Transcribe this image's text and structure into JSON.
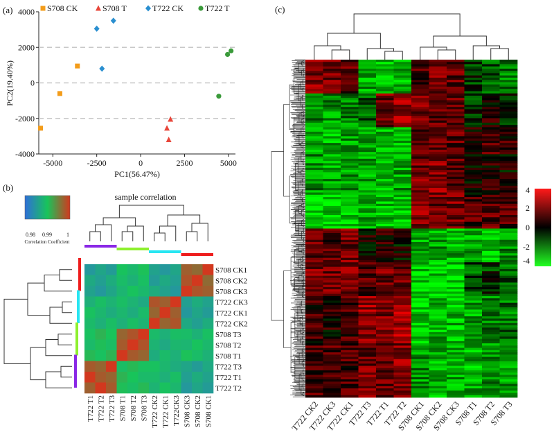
{
  "chart_data": [
    {
      "panel": "(a)",
      "type": "scatter",
      "title": "",
      "xlabel": "PC1(56.47%)",
      "ylabel": "PC2(19.40%)",
      "xlim": [
        -5800,
        5400
      ],
      "ylim": [
        -4000,
        4000
      ],
      "xticks": [
        "-5000",
        "-2500",
        "0",
        "2500",
        "5000"
      ],
      "xtick_values": [
        -5000,
        -2500,
        0,
        2500,
        5000
      ],
      "yticks": [
        "4000",
        "2000",
        "0",
        "-2000",
        "-4000"
      ],
      "ytick_values": [
        4000,
        2000,
        0,
        -2000,
        -4000
      ],
      "dashed_gridlines_at": [
        2000,
        0,
        -2000
      ],
      "legend_position": "top",
      "series": [
        {
          "name": "S708 CK",
          "marker": "square",
          "color": "#f39c1a",
          "points": [
            [
              -3600,
              950
            ],
            [
              -4600,
              -600
            ],
            [
              -5700,
              -2550
            ]
          ]
        },
        {
          "name": "S708 T",
          "marker": "triangle",
          "color": "#e8463a",
          "points": [
            [
              1700,
              -2050
            ],
            [
              1500,
              -2550
            ],
            [
              1600,
              -3200
            ]
          ]
        },
        {
          "name": "T722 CK",
          "marker": "diamond",
          "color": "#2a8fd0",
          "points": [
            [
              -1550,
              3500
            ],
            [
              -2500,
              3050
            ],
            [
              -2200,
              800
            ]
          ]
        },
        {
          "name": "T722 T",
          "marker": "circle",
          "color": "#3a9a3a",
          "points": [
            [
              4950,
              1600
            ],
            [
              5150,
              1800
            ],
            [
              4450,
              -750
            ]
          ]
        }
      ]
    },
    {
      "panel": "(b)",
      "type": "heatmap",
      "title": "sample correlation",
      "colorbar_label": "Correlation Coefficient",
      "colorbar_ticks": [
        "0.98",
        "0.99",
        "1"
      ],
      "colorbar_colors": [
        "#2f6fd8",
        "#18c45a",
        "#d2381e"
      ],
      "row_labels": [
        "S708 CK1",
        "S708 CK2",
        "S708 CK3",
        "T722 CK3",
        "T722 CK1",
        "T722 CK2",
        "S708 T3",
        "S708 T2",
        "S708 T1",
        "T722 T3",
        "T722 T1",
        "T722 T2"
      ],
      "col_labels": [
        "T722 T1",
        "T722 T2",
        "T722 T3",
        "S708 T1",
        "S708 T2",
        "S708 T3",
        "T722 CK2",
        "T722 CK1",
        "T722CK3",
        "S708 CK3",
        "S708 CK2",
        "S708 CK1"
      ],
      "row_group_colors": [
        "#ee1c1c",
        "#27e6f2",
        "#8ef02e",
        "#8a28e6"
      ],
      "col_group_colors": [
        "#8a28e6",
        "#8ef02e",
        "#27e6f2",
        "#ee1c1c"
      ]
    },
    {
      "panel": "(c)",
      "type": "heatmap",
      "title": "",
      "col_labels": [
        "T722 CK2",
        "T722 CK3",
        "T722 CK1",
        "T722 T3",
        "T722 T1",
        "T722 T2",
        "S708 CK1",
        "S708 CK2",
        "S708 CK3",
        "S708 T1",
        "S708 T2",
        "S708 T3"
      ],
      "colorbar_ticks": [
        "4",
        "2",
        "0",
        "-2",
        "-4"
      ],
      "colorbar_range": [
        -4,
        4
      ],
      "colorbar_colors": [
        "#ff1a1a",
        "#000000",
        "#22ff22"
      ]
    }
  ],
  "panel_labels": [
    "(a)",
    "(b)",
    "(c)"
  ]
}
